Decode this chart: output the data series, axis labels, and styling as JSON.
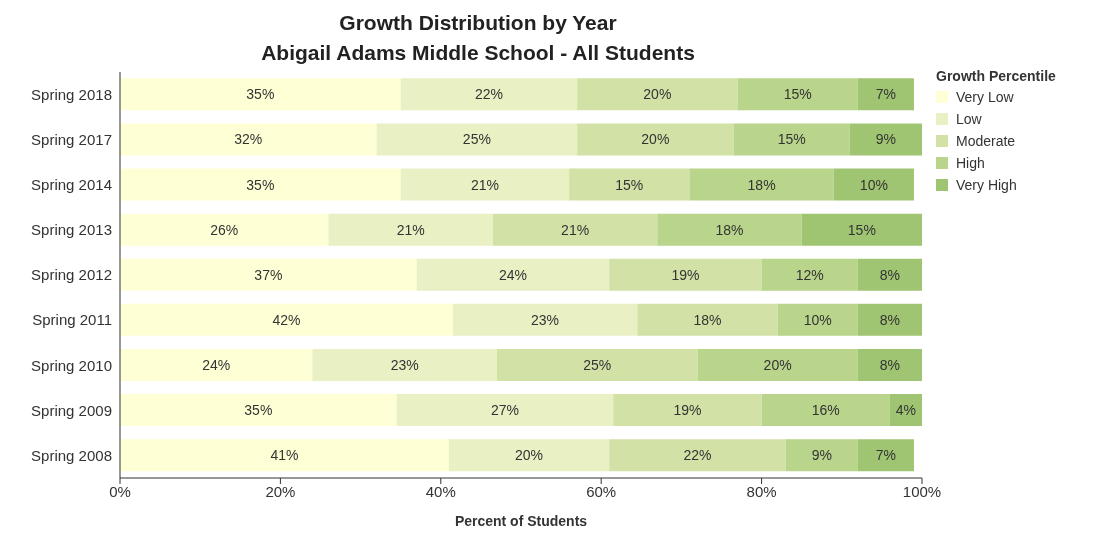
{
  "chart_data": {
    "type": "bar",
    "orientation": "horizontal",
    "stacked": true,
    "title": "Growth Distribution by Year",
    "subtitle": "Abigail Adams Middle School - All Students",
    "xlabel": "Percent of Students",
    "legend_title": "Growth Percentile",
    "legend": "top right",
    "grid": false,
    "categories": [
      "Spring 2018",
      "Spring 2017",
      "Spring 2014",
      "Spring 2013",
      "Spring 2012",
      "Spring 2011",
      "Spring 2010",
      "Spring 2009",
      "Spring 2008"
    ],
    "xlim": [
      0,
      100
    ],
    "xticks": [
      {
        "value": 0,
        "label": "0%"
      },
      {
        "value": 20,
        "label": "20%"
      },
      {
        "value": 40,
        "label": "40%"
      },
      {
        "value": 60,
        "label": "60%"
      },
      {
        "value": 80,
        "label": "80%"
      },
      {
        "value": 100,
        "label": "100%"
      }
    ],
    "series": [
      {
        "name": "Very Low",
        "color": "#ffffd6",
        "values": [
          35,
          32,
          35,
          26,
          37,
          41.5,
          24,
          34.5,
          41
        ],
        "value_labels": [
          "35%",
          "32%",
          "35%",
          "26%",
          "37%",
          "42%",
          "24%",
          "35%",
          "41%"
        ]
      },
      {
        "name": "Low",
        "color": "#e9f0c3",
        "values": [
          22,
          25,
          21,
          20.5,
          24,
          23,
          23,
          27,
          20
        ],
        "value_labels": [
          "22%",
          "25%",
          "21%",
          "21%",
          "24%",
          "23%",
          "23%",
          "27%",
          "20%"
        ]
      },
      {
        "name": "Moderate",
        "color": "#d2e2a6",
        "values": [
          20,
          19.5,
          15,
          20.5,
          19,
          17.5,
          25,
          18.5,
          22
        ],
        "value_labels": [
          "20%",
          "20%",
          "15%",
          "21%",
          "19%",
          "18%",
          "25%",
          "19%",
          "22%"
        ]
      },
      {
        "name": "High",
        "color": "#b9d48b",
        "values": [
          15,
          14.5,
          18,
          18,
          12,
          10,
          20,
          16,
          9
        ],
        "value_labels": [
          "15%",
          "15%",
          "18%",
          "18%",
          "12%",
          "10%",
          "20%",
          "16%",
          "9%"
        ]
      },
      {
        "name": "Very High",
        "color": "#a0c572",
        "values": [
          7,
          9,
          10,
          15,
          8,
          8,
          8,
          4,
          7
        ],
        "value_labels": [
          "7%",
          "9%",
          "10%",
          "15%",
          "8%",
          "8%",
          "8%",
          "4%",
          "7%"
        ]
      }
    ]
  }
}
